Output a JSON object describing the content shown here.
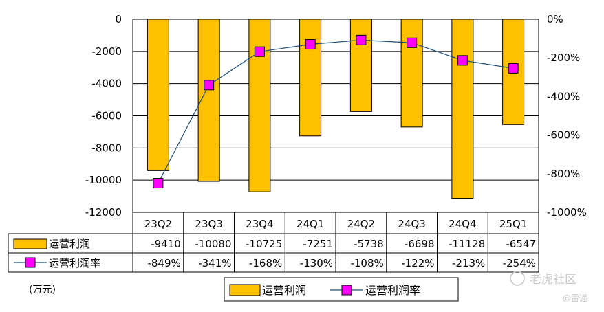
{
  "chart_data": {
    "type": "bar",
    "categories": [
      "23Q2",
      "23Q3",
      "23Q4",
      "24Q1",
      "24Q2",
      "24Q3",
      "24Q4",
      "25Q1"
    ],
    "series": [
      {
        "name": "运营利润",
        "kind": "bar",
        "axis": "left",
        "color": "#FFC000",
        "values": [
          -9410,
          -10080,
          -10725,
          -7251,
          -5738,
          -6698,
          -11128,
          -6547
        ],
        "table_values": [
          "-9410",
          "-10080",
          "-10725",
          "-7251",
          "-5738",
          "-6698",
          "-11128",
          "-6547"
        ]
      },
      {
        "name": "运营利润率",
        "kind": "line",
        "axis": "right",
        "color": "#FF00FF",
        "line_color": "#1F4E79",
        "values": [
          -849,
          -341,
          -168,
          -130,
          -108,
          -122,
          -213,
          -254
        ],
        "table_values": [
          "-849%",
          "-341%",
          "-168%",
          "-130%",
          "-108%",
          "-122%",
          "-213%",
          "-254%"
        ]
      }
    ],
    "y_left": {
      "ylim": [
        -12000,
        0
      ],
      "ticks": [
        0,
        -2000,
        -4000,
        -6000,
        -8000,
        -10000,
        -12000
      ],
      "tick_labels": [
        "0",
        "-2000",
        "-4000",
        "-6000",
        "-8000",
        "-10000",
        "-12000"
      ]
    },
    "y_right": {
      "ylim": [
        -1000,
        0
      ],
      "ticks": [
        0,
        -200,
        -400,
        -600,
        -800,
        -1000
      ],
      "tick_labels": [
        "0%",
        "-200%",
        "-400%",
        "-600%",
        "-800%",
        "-1000%"
      ]
    },
    "unit_label": "(万元)",
    "grid": true,
    "data_table": true,
    "legend_position": "bottom",
    "legend": [
      "运营利润",
      "运营利润率"
    ]
  },
  "watermark": {
    "brand": "老虎社区",
    "handle": "@雷递"
  }
}
